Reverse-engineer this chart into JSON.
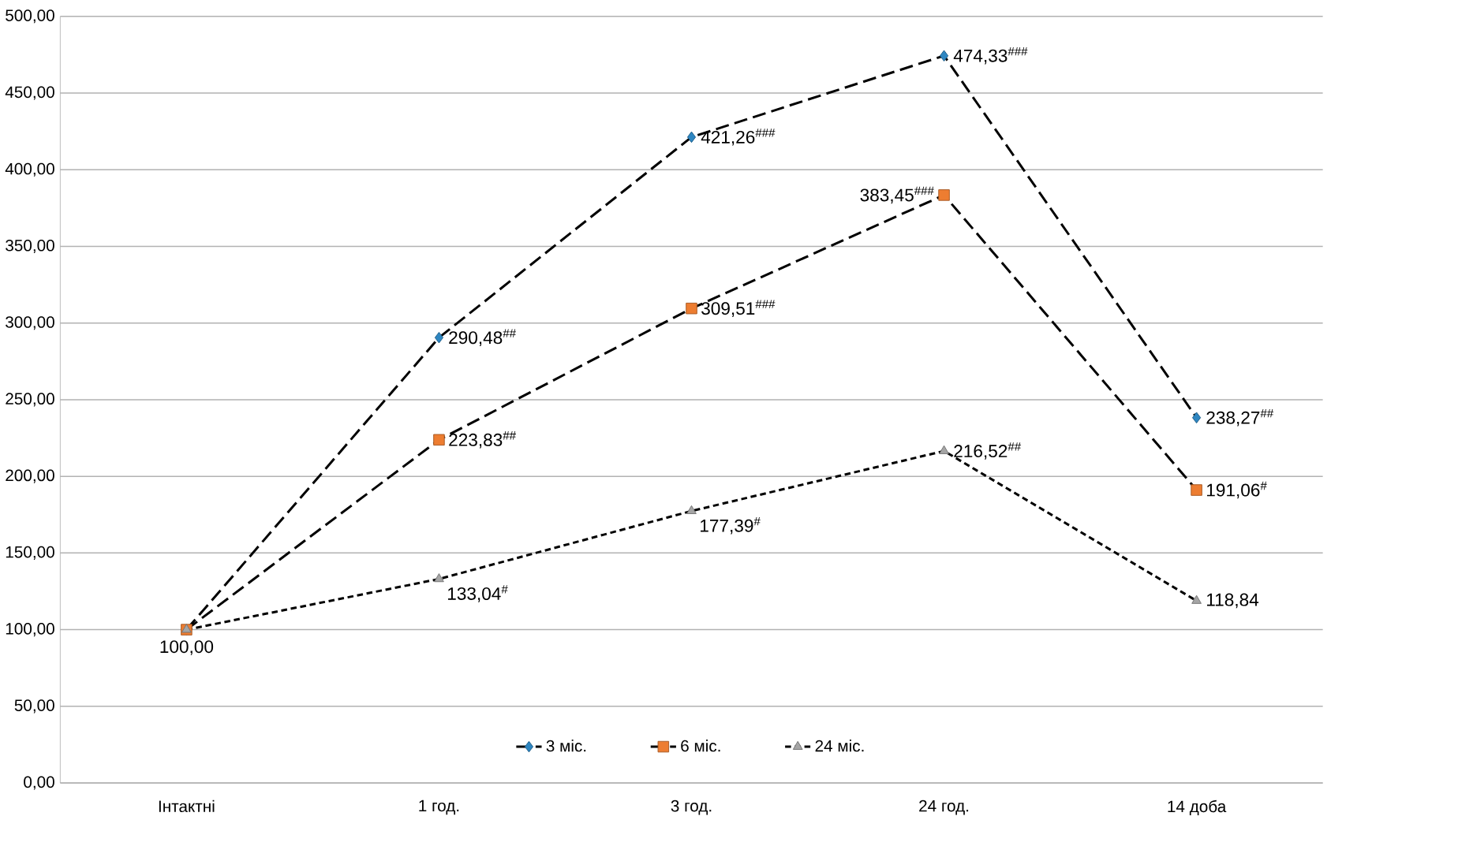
{
  "chart_data": {
    "type": "line",
    "categories": [
      "Інтактні",
      "1 год.",
      "3 год.",
      "24 год.",
      "14 доба"
    ],
    "series": [
      {
        "name": "3 міс.",
        "color": "#2e86c1",
        "marker": "diamond",
        "line_style": "dashed",
        "values": [
          100,
          290.48,
          421.26,
          474.33,
          238.27
        ],
        "value_labels": [
          null,
          "290,48$^{##}$",
          "421,26$^{###}$",
          "474,33$^{###}$",
          "238,27$^{##}$"
        ]
      },
      {
        "name": "6 міс.",
        "color": "#ed7d31",
        "marker": "square",
        "line_style": "dashed",
        "values": [
          100,
          223.83,
          309.51,
          383.45,
          191.06
        ],
        "value_labels": [
          null,
          "223,83$^{##}$",
          "309,51$^{###}$",
          "383,45$^{###}$",
          "191,06$^{#}$"
        ]
      },
      {
        "name": "24 міс.",
        "color": "#a5a5a5",
        "marker": "triangle",
        "line_style": "dotted",
        "values": [
          100,
          133.04,
          177.39,
          216.52,
          118.84
        ],
        "value_labels": [
          "100,00",
          "133,04$^{#}$",
          "177,39$^{#}$",
          "216,52$^{##}$",
          "118,84"
        ]
      }
    ],
    "ylim": [
      0,
      500
    ],
    "yticks": [
      {
        "value": 0,
        "label": "0,00"
      },
      {
        "value": 50,
        "label": "50,00"
      },
      {
        "value": 100,
        "label": "100,00"
      },
      {
        "value": 150,
        "label": "150,00"
      },
      {
        "value": 200,
        "label": "200,00"
      },
      {
        "value": 250,
        "label": "250,00"
      },
      {
        "value": 300,
        "label": "300,00"
      },
      {
        "value": 350,
        "label": "350,00"
      },
      {
        "value": 400,
        "label": "400,00"
      },
      {
        "value": 450,
        "label": "450,00"
      },
      {
        "value": 500,
        "label": "500,00"
      }
    ],
    "grid": "y",
    "legend": "bottom"
  }
}
